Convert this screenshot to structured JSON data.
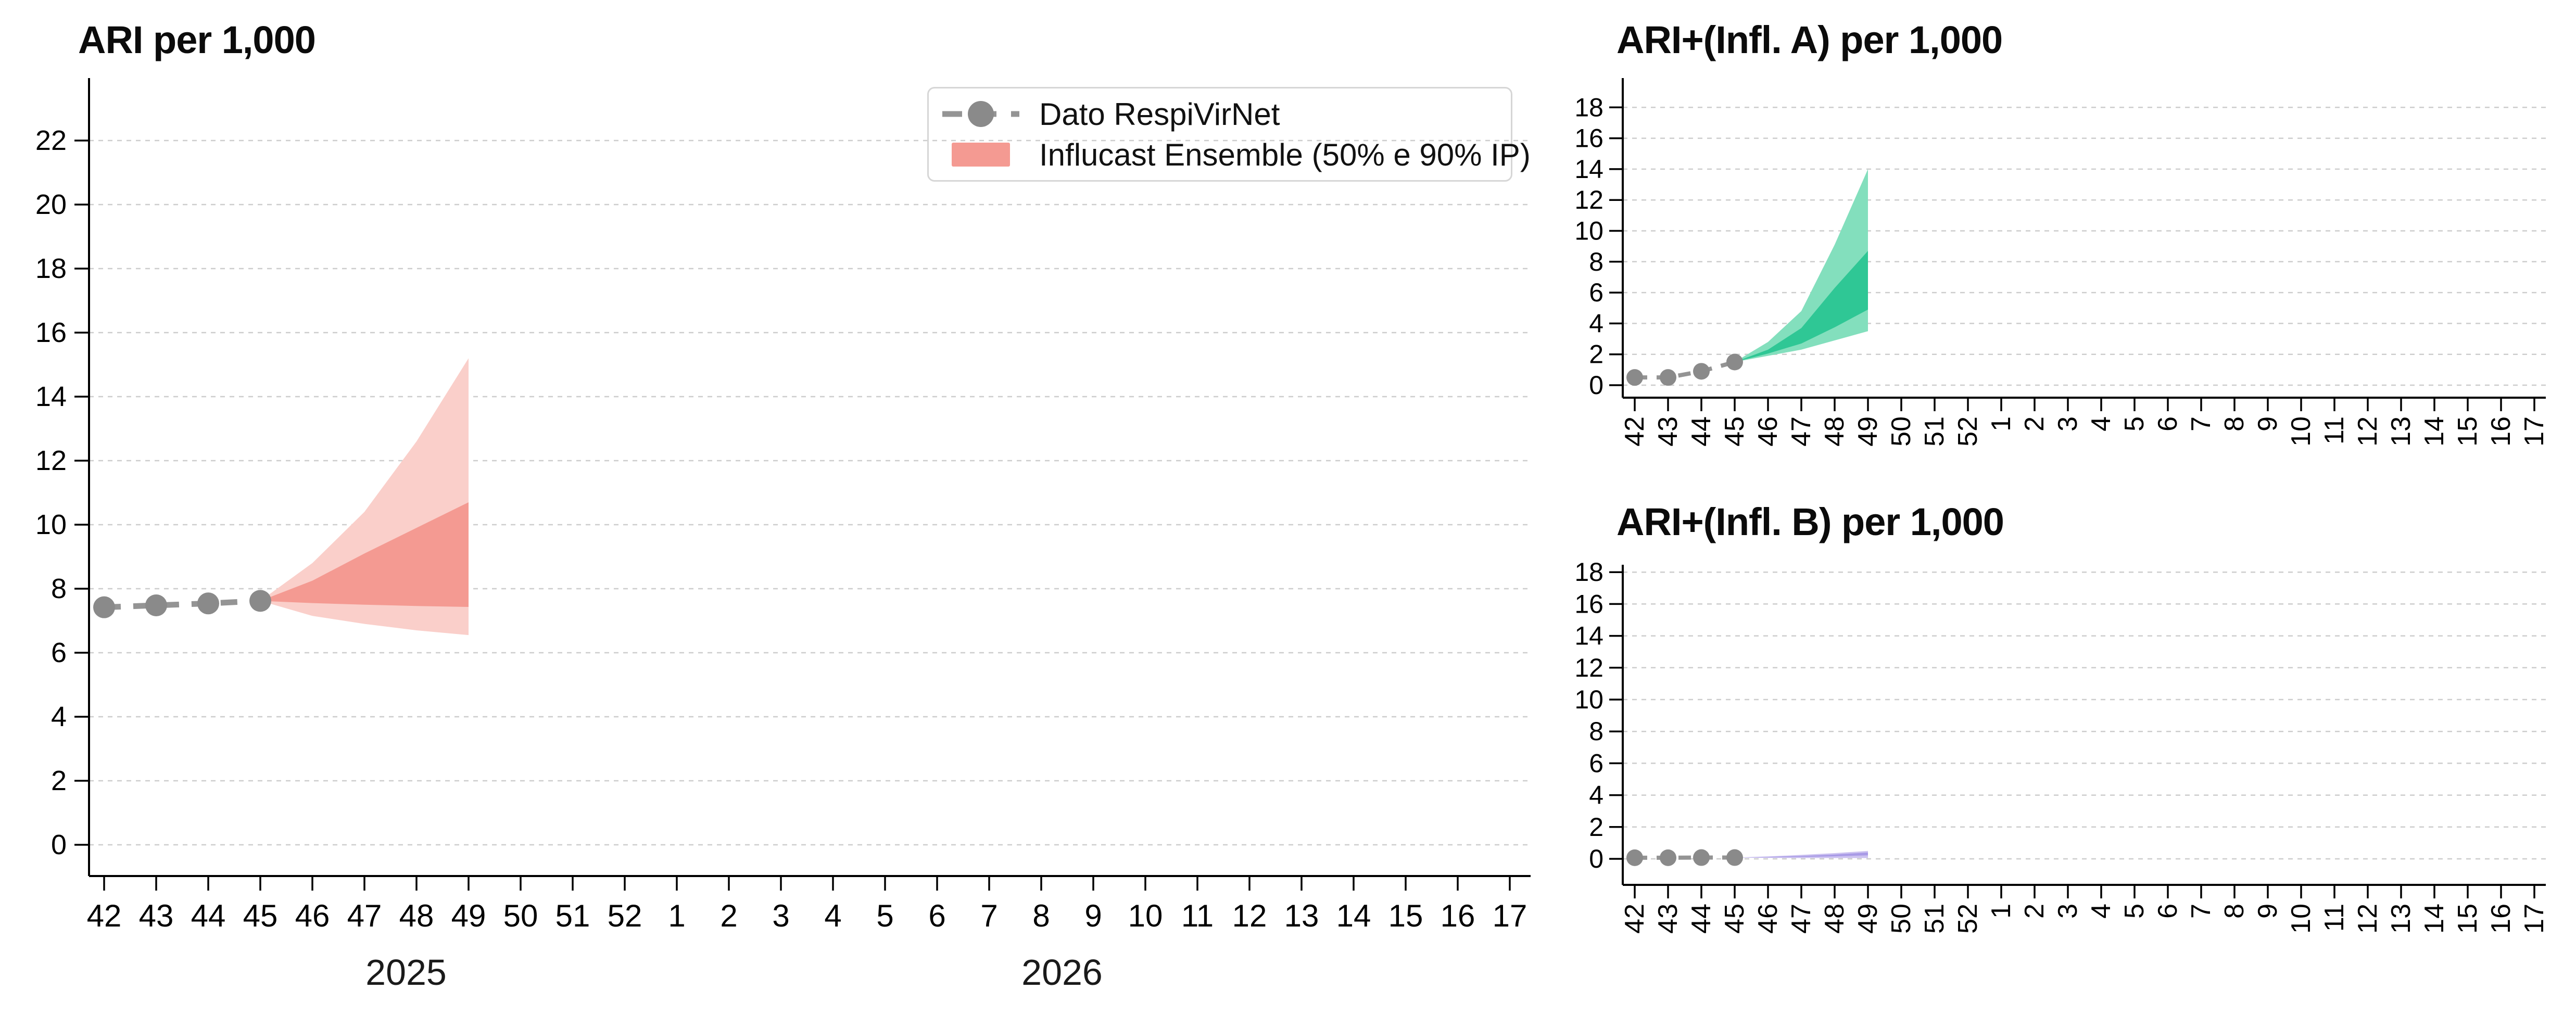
{
  "figure": {
    "background": "#ffffff",
    "grid_color": "#cdcdcd",
    "axis_color": "#000000",
    "observed_color": "#8a8a8a",
    "observed_line_color": "#949494"
  },
  "legend": {
    "items": [
      {
        "label": "Dato RespiVirNet",
        "marker": "gray-dot-dashed-line"
      },
      {
        "label": "Influcast Ensemble (50% e 90% IP)",
        "marker": "salmon-rect"
      }
    ]
  },
  "chart_data": [
    {
      "id": "ari",
      "type": "line",
      "subtype": "fan-forecast",
      "title": "ARI per 1,000",
      "x_categories": [
        "42",
        "43",
        "44",
        "45",
        "46",
        "47",
        "48",
        "49",
        "50",
        "51",
        "52",
        "1",
        "2",
        "3",
        "4",
        "5",
        "6",
        "7",
        "8",
        "9",
        "10",
        "11",
        "12",
        "13",
        "14",
        "15",
        "16",
        "17"
      ],
      "year_labels": [
        {
          "text": "2025"
        },
        {
          "text": "2026"
        }
      ],
      "yticks": [
        0,
        2,
        4,
        6,
        8,
        10,
        12,
        14,
        16,
        18,
        20,
        22
      ],
      "ylim": [
        0,
        23.9
      ],
      "grid": true,
      "legend_position": "top-right",
      "observed": {
        "name": "Dato RespiVirNet",
        "weeks": [
          "42",
          "43",
          "44",
          "45"
        ],
        "values": [
          7.42,
          7.48,
          7.54,
          7.62
        ]
      },
      "forecast": {
        "name": "Influcast Ensemble (50% e 90% IP)",
        "weeks": [
          "45",
          "46",
          "47",
          "48",
          "49"
        ],
        "p95_upper": [
          7.62,
          8.8,
          10.4,
          12.6,
          15.2
        ],
        "p75_upper": [
          7.62,
          8.25,
          9.1,
          9.9,
          10.7
        ],
        "p25_lower": [
          7.62,
          7.55,
          7.5,
          7.46,
          7.43
        ],
        "p05_lower": [
          7.62,
          7.15,
          6.9,
          6.7,
          6.55
        ]
      },
      "colors": {
        "band50": "#f49a92",
        "band90": "#facfca"
      }
    },
    {
      "id": "infl_a",
      "type": "line",
      "subtype": "fan-forecast",
      "title": "ARI+(Infl. A) per 1,000",
      "x_categories": [
        "42",
        "43",
        "44",
        "45",
        "46",
        "47",
        "48",
        "49",
        "50",
        "51",
        "52",
        "1",
        "2",
        "3",
        "4",
        "5",
        "6",
        "7",
        "8",
        "9",
        "10",
        "11",
        "12",
        "13",
        "14",
        "15",
        "16",
        "17"
      ],
      "yticks": [
        0,
        2,
        4,
        6,
        8,
        10,
        12,
        14,
        16,
        18
      ],
      "ylim": [
        0,
        19.9
      ],
      "grid": true,
      "observed": {
        "name": "Dato RespiVirNet",
        "weeks": [
          "42",
          "43",
          "44",
          "45"
        ],
        "values": [
          0.5,
          0.5,
          0.9,
          1.5
        ]
      },
      "forecast": {
        "name": "Influcast Ensemble (50% e 90% IP)",
        "weeks": [
          "45",
          "46",
          "47",
          "48",
          "49"
        ],
        "p95_upper": [
          1.5,
          2.8,
          4.8,
          9.1,
          14.0
        ],
        "p75_upper": [
          1.5,
          2.3,
          3.7,
          6.3,
          8.7
        ],
        "p25_lower": [
          1.5,
          2.05,
          2.7,
          3.75,
          4.9
        ],
        "p05_lower": [
          1.5,
          1.9,
          2.3,
          2.9,
          3.5
        ]
      },
      "colors": {
        "band50": "#2fc795",
        "band90": "#83dfbd"
      }
    },
    {
      "id": "infl_b",
      "type": "line",
      "subtype": "fan-forecast",
      "title": "ARI+(Infl. B) per 1,000",
      "x_categories": [
        "42",
        "43",
        "44",
        "45",
        "46",
        "47",
        "48",
        "49",
        "50",
        "51",
        "52",
        "1",
        "2",
        "3",
        "4",
        "5",
        "6",
        "7",
        "8",
        "9",
        "10",
        "11",
        "12",
        "13",
        "14",
        "15",
        "16",
        "17"
      ],
      "yticks": [
        0,
        2,
        4,
        6,
        8,
        10,
        12,
        14,
        16,
        18
      ],
      "ylim": [
        0,
        19.9
      ],
      "grid": true,
      "observed": {
        "name": "Dato RespiVirNet",
        "weeks": [
          "42",
          "43",
          "44",
          "45"
        ],
        "values": [
          0.07,
          0.07,
          0.08,
          0.08
        ]
      },
      "forecast": {
        "name": "Influcast Ensemble (50% e 90% IP)",
        "weeks": [
          "45",
          "46",
          "47",
          "48",
          "49"
        ],
        "p95_upper": [
          0.08,
          0.15,
          0.25,
          0.36,
          0.5
        ],
        "p75_upper": [
          0.08,
          0.12,
          0.18,
          0.27,
          0.4
        ],
        "p25_lower": [
          0.08,
          0.09,
          0.12,
          0.16,
          0.22
        ],
        "p05_lower": [
          0.08,
          0.06,
          0.05,
          0.05,
          0.05
        ]
      },
      "colors": {
        "band50": "#a89ae6",
        "band90": "#ccc2f0"
      }
    }
  ]
}
